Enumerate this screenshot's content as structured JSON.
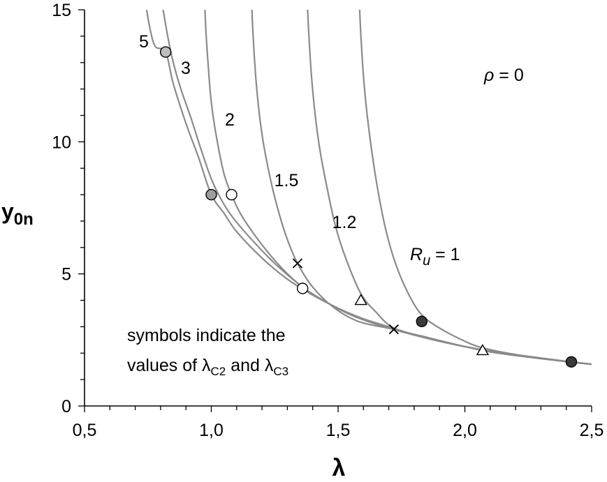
{
  "chart_data": {
    "type": "line",
    "title": "",
    "xlabel": "λ",
    "ylabel": "y",
    "ylabel_sub": "0n",
    "xlim": [
      0.5,
      2.5
    ],
    "ylim": [
      0,
      15
    ],
    "x_ticks": [
      {
        "value": 0.5,
        "label": "0,5"
      },
      {
        "value": 1.0,
        "label": "1,0"
      },
      {
        "value": 1.5,
        "label": "1,5"
      },
      {
        "value": 2.0,
        "label": "2,0"
      },
      {
        "value": 2.5,
        "label": "2,5"
      }
    ],
    "y_ticks": [
      {
        "value": 0,
        "label": "0"
      },
      {
        "value": 5,
        "label": "5"
      },
      {
        "value": 10,
        "label": "10"
      },
      {
        "value": 15,
        "label": "15"
      }
    ],
    "grid": false,
    "annotation_rho": {
      "symbol": "ρ",
      "text": " = 0"
    },
    "note": {
      "line1": "symbols indicate the",
      "line2_prefix": "values of  ",
      "lambda": "λ",
      "sub_c2": "C2",
      "middle": " and ",
      "sub_c3": "C3"
    },
    "ru_prefix": "R",
    "ru_sub": "u",
    "ru_suffix": " = 1",
    "series": [
      {
        "label": "5",
        "points": [
          [
            0.745,
            15
          ],
          [
            0.76,
            14.2
          ],
          [
            0.78,
            13.6
          ],
          [
            0.82,
            13.4
          ],
          [
            0.85,
            12.2
          ],
          [
            0.9,
            10.7
          ],
          [
            0.95,
            9.4
          ],
          [
            1.0,
            8.0
          ],
          [
            1.05,
            7.3
          ],
          [
            1.1,
            6.6
          ],
          [
            1.2,
            5.6
          ],
          [
            1.3,
            4.8
          ],
          [
            1.4,
            4.2
          ],
          [
            1.5,
            3.7
          ],
          [
            1.6,
            3.3
          ],
          [
            1.7,
            3.0
          ],
          [
            1.8,
            2.7
          ],
          [
            1.9,
            2.45
          ],
          [
            2.0,
            2.25
          ],
          [
            2.1,
            2.07
          ],
          [
            2.2,
            1.92
          ],
          [
            2.3,
            1.8
          ],
          [
            2.4,
            1.68
          ],
          [
            2.5,
            1.58
          ]
        ]
      },
      {
        "label": "3",
        "points": [
          [
            0.81,
            15
          ],
          [
            0.83,
            13.9
          ],
          [
            0.85,
            13.0
          ],
          [
            0.88,
            12.0
          ],
          [
            0.92,
            10.9
          ],
          [
            0.96,
            9.7
          ],
          [
            1.0,
            8.6
          ],
          [
            1.04,
            7.8
          ],
          [
            1.08,
            7.2
          ],
          [
            1.15,
            6.4
          ],
          [
            1.25,
            5.4
          ],
          [
            1.36,
            4.5
          ],
          [
            1.45,
            3.95
          ],
          [
            1.55,
            3.45
          ],
          [
            1.65,
            3.1
          ],
          [
            1.8,
            2.7
          ],
          [
            2.0,
            2.25
          ],
          [
            2.2,
            1.92
          ],
          [
            2.4,
            1.68
          ],
          [
            2.5,
            1.58
          ]
        ]
      },
      {
        "label": "2",
        "points": [
          [
            0.975,
            15
          ],
          [
            0.98,
            14.0
          ],
          [
            0.99,
            12.6
          ],
          [
            1.0,
            11.5
          ],
          [
            1.02,
            10.2
          ],
          [
            1.05,
            8.8
          ],
          [
            1.08,
            8.0
          ],
          [
            1.12,
            7.2
          ],
          [
            1.2,
            6.1
          ],
          [
            1.28,
            5.2
          ],
          [
            1.36,
            4.5
          ],
          [
            1.45,
            3.95
          ],
          [
            1.55,
            3.45
          ],
          [
            1.7,
            2.95
          ],
          [
            1.9,
            2.45
          ],
          [
            2.1,
            2.07
          ],
          [
            2.3,
            1.8
          ],
          [
            2.5,
            1.58
          ]
        ]
      },
      {
        "label": "1.5",
        "points": [
          [
            1.16,
            15
          ],
          [
            1.165,
            14.0
          ],
          [
            1.175,
            12.5
          ],
          [
            1.19,
            11.0
          ],
          [
            1.21,
            9.7
          ],
          [
            1.24,
            8.3
          ],
          [
            1.27,
            7.2
          ],
          [
            1.3,
            6.3
          ],
          [
            1.34,
            5.4
          ],
          [
            1.4,
            4.5
          ],
          [
            1.48,
            3.75
          ],
          [
            1.58,
            3.2
          ],
          [
            1.72,
            2.9
          ],
          [
            1.9,
            2.45
          ],
          [
            2.1,
            2.07
          ],
          [
            2.3,
            1.8
          ],
          [
            2.5,
            1.58
          ]
        ]
      },
      {
        "label": "1.2",
        "points": [
          [
            1.38,
            15
          ],
          [
            1.385,
            14.0
          ],
          [
            1.395,
            12.5
          ],
          [
            1.41,
            11.0
          ],
          [
            1.43,
            9.6
          ],
          [
            1.46,
            8.1
          ],
          [
            1.49,
            6.8
          ],
          [
            1.53,
            5.6
          ],
          [
            1.59,
            4.25
          ],
          [
            1.65,
            3.55
          ],
          [
            1.72,
            2.95
          ],
          [
            1.85,
            2.6
          ],
          [
            2.07,
            2.1
          ],
          [
            2.25,
            1.85
          ],
          [
            2.5,
            1.58
          ]
        ]
      },
      {
        "label": "1",
        "points": [
          [
            1.585,
            15
          ],
          [
            1.59,
            14.0
          ],
          [
            1.6,
            12.5
          ],
          [
            1.615,
            11.0
          ],
          [
            1.635,
            9.5
          ],
          [
            1.66,
            8.0
          ],
          [
            1.69,
            6.6
          ],
          [
            1.73,
            5.3
          ],
          [
            1.78,
            4.2
          ],
          [
            1.83,
            3.45
          ],
          [
            1.9,
            2.95
          ],
          [
            2.0,
            2.45
          ],
          [
            2.07,
            2.2
          ],
          [
            2.2,
            1.95
          ],
          [
            2.42,
            1.67
          ],
          [
            2.5,
            1.58
          ]
        ]
      }
    ],
    "markers": [
      {
        "symbol": "circle",
        "fill": "#bdbdbd",
        "x": 0.82,
        "y": 13.4
      },
      {
        "symbol": "circle",
        "fill": "#9e9e9e",
        "x": 1.0,
        "y": 8.0
      },
      {
        "symbol": "circle",
        "fill": "#ffffff",
        "x": 1.08,
        "y": 8.0
      },
      {
        "symbol": "cross",
        "x": 1.34,
        "y": 5.4
      },
      {
        "symbol": "circle",
        "fill": "#ffffff",
        "x": 1.36,
        "y": 4.45
      },
      {
        "symbol": "triangle",
        "x": 1.59,
        "y": 4.0
      },
      {
        "symbol": "cross",
        "x": 1.72,
        "y": 2.9
      },
      {
        "symbol": "circle",
        "fill": "#3a3a3a",
        "x": 1.83,
        "y": 3.2
      },
      {
        "symbol": "triangle",
        "x": 2.07,
        "y": 2.1
      },
      {
        "symbol": "circle",
        "fill": "#3a3a3a",
        "x": 2.42,
        "y": 1.67
      }
    ]
  }
}
